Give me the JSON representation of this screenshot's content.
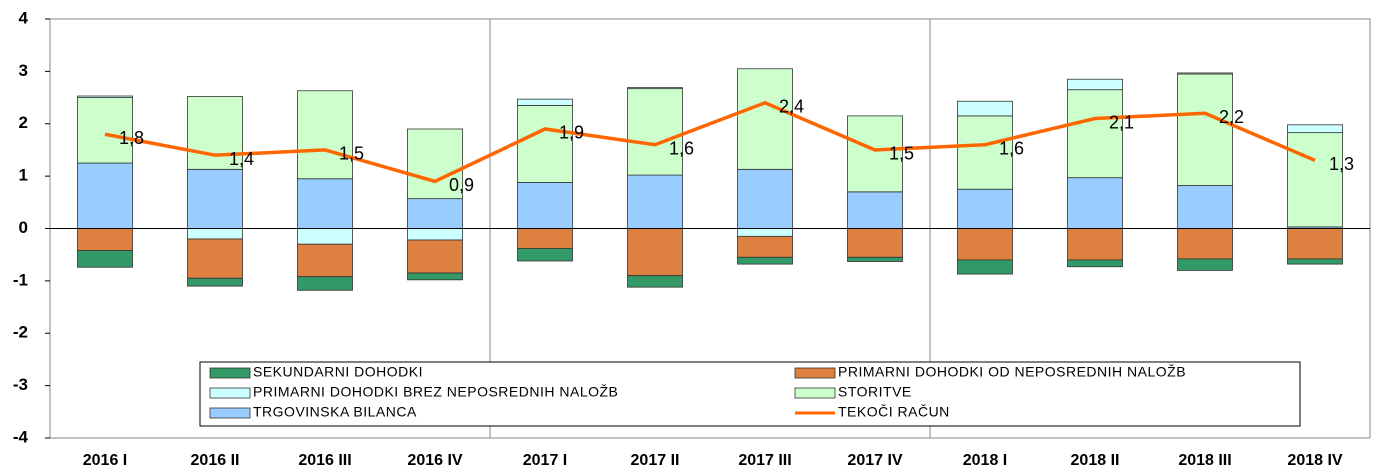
{
  "chart_data": {
    "type": "bar",
    "stacked": true,
    "categories": [
      "2016 I",
      "2016 II",
      "2016 III",
      "2016 IV",
      "2017 I",
      "2017 II",
      "2017 III",
      "2017 IV",
      "2018 I",
      "2018 II",
      "2018 III",
      "2018 IV"
    ],
    "series": [
      {
        "name": "SEKUNDARNI DOHODKI",
        "color": "#339966",
        "values": [
          -0.32,
          -0.15,
          -0.26,
          -0.13,
          -0.24,
          -0.22,
          -0.13,
          -0.08,
          -0.27,
          -0.13,
          -0.22,
          -0.1
        ]
      },
      {
        "name": "PRIMARNI DOHODKI OD NEPOSREDNIH NALOŽB",
        "color": "#dd8040",
        "values": [
          -0.42,
          -0.75,
          -0.62,
          -0.63,
          -0.38,
          -0.9,
          -0.4,
          -0.55,
          -0.6,
          -0.6,
          -0.58,
          -0.58
        ]
      },
      {
        "name": "PRIMARNI DOHODKI BREZ NEPOSREDNIH NALOŽB",
        "color": "#ccffff",
        "values": [
          0.03,
          -0.2,
          -0.3,
          -0.22,
          0.12,
          0.02,
          -0.15,
          0,
          0.28,
          0.2,
          0.02,
          0.15
        ]
      },
      {
        "name": "STORITVE",
        "color": "#ccffcc",
        "values": [
          1.25,
          1.39,
          1.68,
          1.33,
          1.47,
          1.65,
          1.92,
          1.45,
          1.4,
          1.68,
          2.13,
          1.8
        ]
      },
      {
        "name": "TRGOVINSKA BILANCA",
        "color": "#99ccff",
        "values": [
          1.25,
          1.13,
          0.95,
          0.57,
          0.88,
          1.02,
          1.13,
          0.7,
          0.75,
          0.97,
          0.82,
          0.03
        ]
      },
      {
        "name": "TEKOČI RAČUN",
        "color": "#ff6600",
        "type": "line",
        "values": [
          1.8,
          1.4,
          1.5,
          0.9,
          1.9,
          1.6,
          2.4,
          1.5,
          1.6,
          2.1,
          2.2,
          1.3
        ],
        "value_labels": [
          "1,8",
          "1,4",
          "1,5",
          "0,9",
          "1,9",
          "1,6",
          "2,4",
          "1,5",
          "1,6",
          "2,1",
          "2,2",
          "1,3"
        ]
      }
    ],
    "ylim": [
      -4,
      4
    ],
    "yticks": [
      -4,
      -3,
      -2,
      -1,
      0,
      1,
      2,
      3,
      4
    ]
  }
}
